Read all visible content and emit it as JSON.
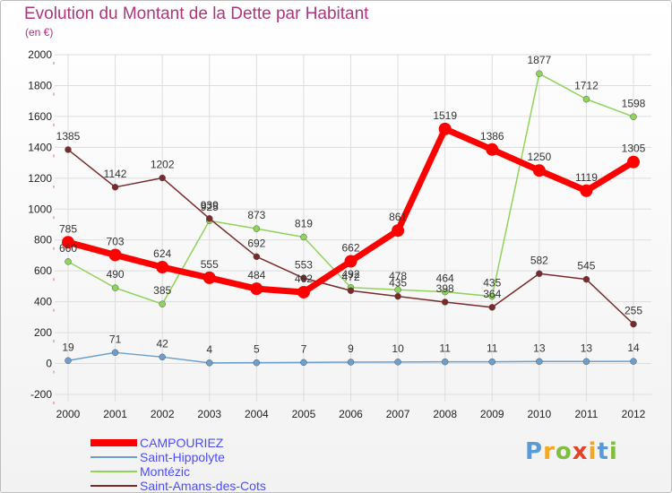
{
  "title": "Evolution du Montant de la Dette par Habitant",
  "subtitle": "(en €)",
  "logo": {
    "text": "Proxiti"
  },
  "chart_data": {
    "type": "line",
    "x": [
      "2000",
      "2001",
      "2002",
      "2003",
      "2004",
      "2005",
      "2006",
      "2007",
      "2008",
      "2009",
      "2010",
      "2011",
      "2012"
    ],
    "ylim": [
      -200,
      2000
    ],
    "yticks": [
      -200,
      0,
      200,
      400,
      600,
      800,
      1000,
      1200,
      1400,
      1600,
      1800,
      2000
    ],
    "grid": true,
    "legend": "bottom-left",
    "series": [
      {
        "name": "CAMPOURIEZ",
        "color": "#ff0000",
        "values": [
          785,
          703,
          624,
          555,
          484,
          462,
          662,
          861,
          1519,
          1386,
          1250,
          1119,
          1305
        ]
      },
      {
        "name": "Saint-Hippolyte",
        "color": "#6a9fcf",
        "values": [
          19,
          71,
          42,
          4,
          5,
          7,
          9,
          10,
          11,
          11,
          13,
          13,
          14
        ]
      },
      {
        "name": "Montézic",
        "color": "#8fd45a",
        "values": [
          660,
          490,
          385,
          925,
          873,
          819,
          492,
          478,
          464,
          435,
          1877,
          1712,
          1598
        ]
      },
      {
        "name": "Saint-Amans-des-Cots",
        "color": "#7a2a2a",
        "values": [
          1385,
          1142,
          1202,
          939,
          692,
          553,
          472,
          435,
          398,
          364,
          582,
          545,
          255
        ]
      }
    ]
  }
}
